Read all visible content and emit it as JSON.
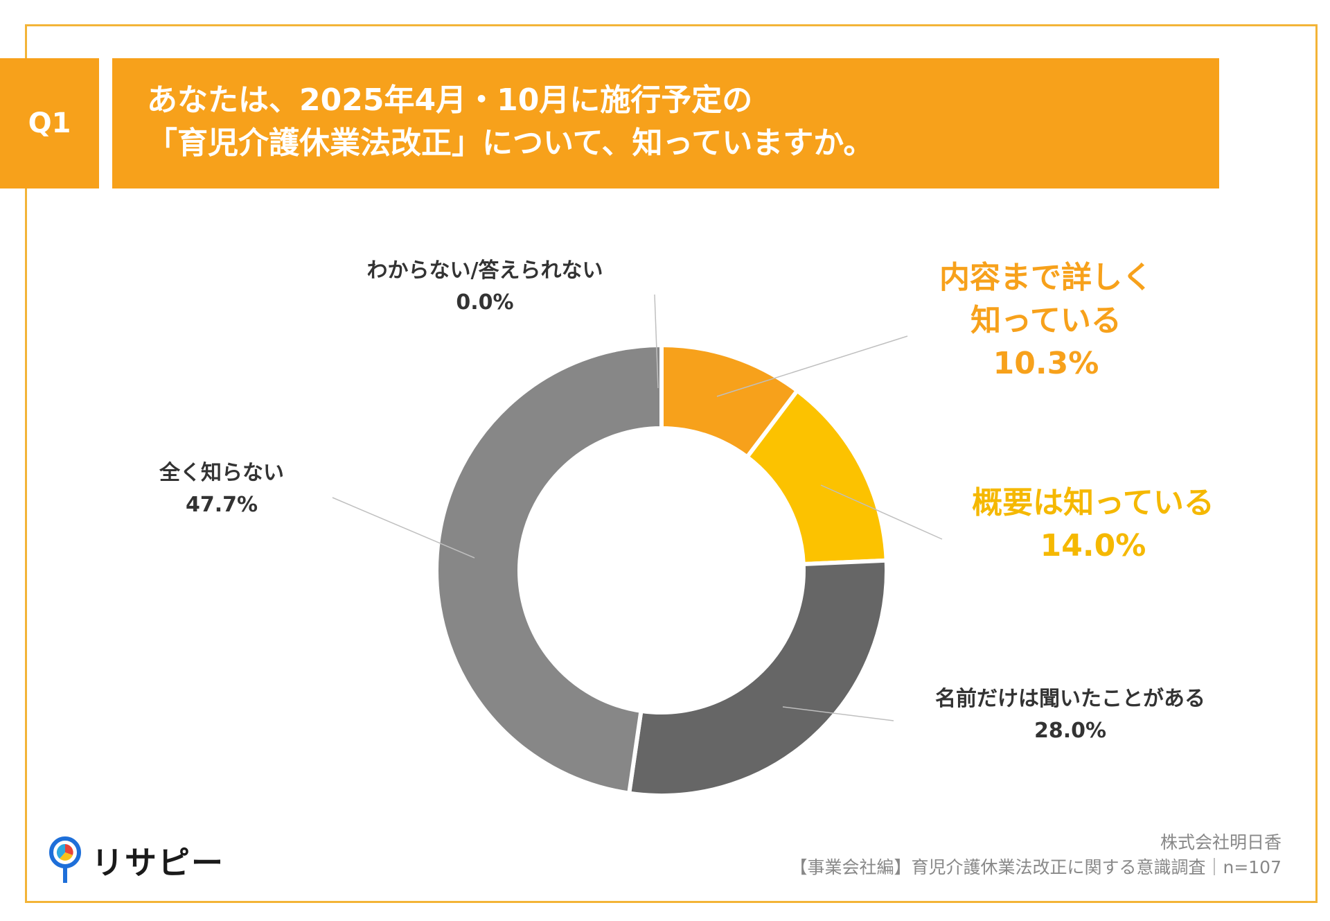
{
  "header": {
    "badge": "Q1",
    "title_line1": "あなたは、2025年4月・10月に施行予定の",
    "title_line2": "「育児介護休業法改正」について、知っていますか。"
  },
  "chart_data": {
    "type": "donut",
    "series": [
      {
        "label": "内容まで詳しく知っている",
        "label_lines": [
          "内容まで詳しく",
          "知っている"
        ],
        "value": 10.3,
        "value_label": "10.3%",
        "color": "#F7A11B",
        "label_color": "#F7A11B"
      },
      {
        "label": "概要は知っている",
        "label_lines": [
          "概要は知っている"
        ],
        "value": 14.0,
        "value_label": "14.0%",
        "color": "#FCC200",
        "label_color": "#F5B800"
      },
      {
        "label": "名前だけは聞いたことがある",
        "label_lines": [
          "名前だけは聞いたことがある"
        ],
        "value": 28.0,
        "value_label": "28.0%",
        "color": "#666666",
        "label_color": "#333333"
      },
      {
        "label": "全く知らない",
        "label_lines": [
          "全く知らない"
        ],
        "value": 47.7,
        "value_label": "47.7%",
        "color": "#878787",
        "label_color": "#333333"
      },
      {
        "label": "わからない/答えられない",
        "label_lines": [
          "わからない/答えられない"
        ],
        "value": 0.0,
        "value_label": "0.0%",
        "color": "#BFBFBF",
        "label_color": "#333333"
      }
    ]
  },
  "footer": {
    "company": "株式会社明日香",
    "survey": "【事業会社編】育児介護休業法改正に関する意識調査｜n=107"
  },
  "logo": {
    "text": "リサピー",
    "mark": "pin-logo-icon"
  }
}
